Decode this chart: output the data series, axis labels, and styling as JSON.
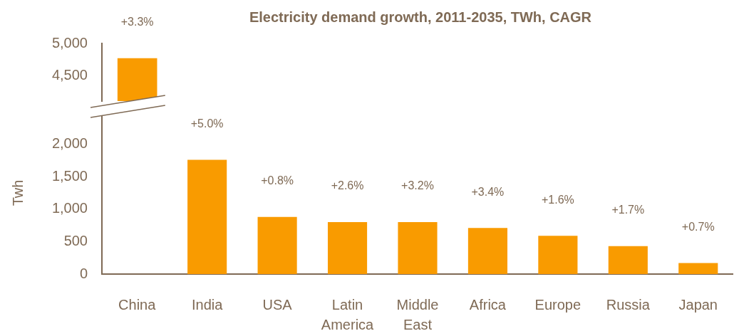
{
  "chart_data": [
    {
      "type": "bar",
      "title": "Electricity demand growth, 2011-2035, TWh, CAGR",
      "categories": [
        "China",
        "India",
        "USA",
        "Latin America",
        "Middle East",
        "Africa",
        "Europe",
        "Russia",
        "Japan"
      ],
      "values": [
        4770,
        null,
        null,
        null,
        null,
        null,
        null,
        null,
        null
      ],
      "color": "#f99b00",
      "grid": false,
      "legend": false,
      "ylim": [
        4100,
        5000
      ],
      "yticks": [
        {
          "value": 4500,
          "label": "4,500"
        },
        {
          "value": 5000,
          "label": "5,000"
        }
      ],
      "tick_labels": "y",
      "annotations": [
        {
          "text": "+3.3%",
          "x": "China",
          "y": 4770
        }
      ]
    },
    {
      "type": "bar",
      "ylabel": "Twh",
      "categories": [
        "China",
        "India",
        "USA",
        "Latin America",
        "Middle East",
        "Africa",
        "Europe",
        "Russia",
        "Japan"
      ],
      "values": [
        null,
        1760,
        880,
        800,
        800,
        710,
        590,
        430,
        170
      ],
      "color": "#f99b00",
      "grid": false,
      "legend": false,
      "ylim": [
        0,
        2500
      ],
      "yticks": [
        0,
        500,
        {
          "value": 1000,
          "label": "1,000"
        },
        {
          "value": 1500,
          "label": "1,500"
        },
        {
          "value": 2000,
          "label": "2,000"
        }
      ],
      "annotations": [
        {
          "text": "+5.0%",
          "x": "India",
          "y": 1760
        },
        {
          "text": "+0.8%",
          "x": "USA",
          "y": 880
        },
        {
          "text": "+2.6%",
          "x": "Latin America",
          "y": 800
        },
        {
          "text": "+3.2%",
          "x": "Middle East",
          "y": 800
        },
        {
          "text": "+3.4%",
          "x": "Africa",
          "y": 710
        },
        {
          "text": "+1.6%",
          "x": "Europe",
          "y": 590
        },
        {
          "text": "+1.7%",
          "x": "Russia",
          "y": 430
        },
        {
          "text": "+0.7%",
          "x": "Japan",
          "y": 170
        }
      ]
    }
  ]
}
